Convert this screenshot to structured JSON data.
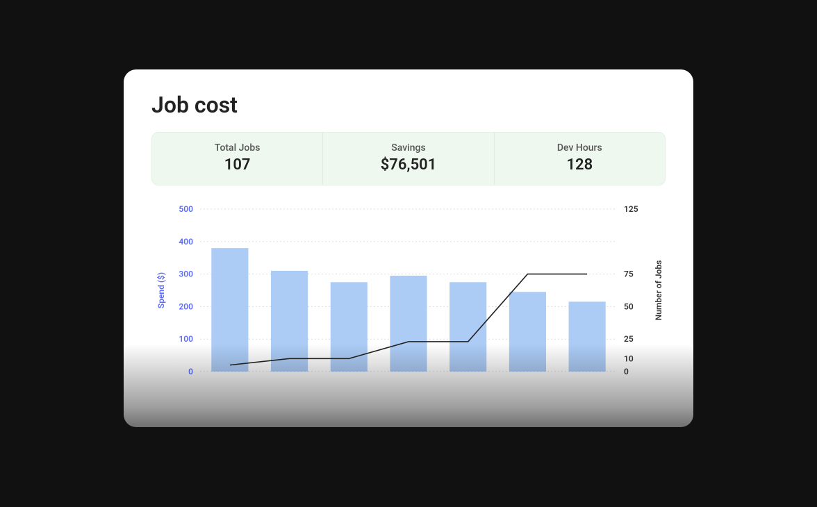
{
  "title": "Job cost",
  "stats": [
    {
      "label": "Total Jobs",
      "value": "107"
    },
    {
      "label": "Savings",
      "value": "$76,501"
    },
    {
      "label": "Dev Hours",
      "value": "128"
    }
  ],
  "chart": {
    "type": "bar+line",
    "background_color": "#ffffff",
    "bar_color": "#a3c6f5",
    "bar_opacity": 0.9,
    "bar_width_ratio": 0.62,
    "line_color": "#222222",
    "line_width": 1.6,
    "grid_color": "#dddddd",
    "grid_dash": "2,3",
    "left_axis": {
      "label": "Spend ($)",
      "min": 0,
      "max": 500,
      "ticks": [
        0,
        100,
        200,
        300,
        400,
        500
      ],
      "tick_color": "#5b6cff",
      "label_fontsize": 12
    },
    "right_axis": {
      "label": "Number of Jobs",
      "min": 0,
      "max": 125,
      "ticks": [
        0,
        10,
        25,
        50,
        75,
        125
      ],
      "tick_color": "#333333",
      "label_fontsize": 12
    },
    "bars": [
      380,
      310,
      275,
      295,
      275,
      245,
      215
    ],
    "line": [
      5,
      10,
      10,
      23,
      23,
      75,
      75
    ]
  },
  "colors": {
    "page_bg": "#111111",
    "card_bg": "#ffffff",
    "stats_bg": "#eef8ef",
    "stats_border": "#e2efe4",
    "title_color": "#222222"
  }
}
